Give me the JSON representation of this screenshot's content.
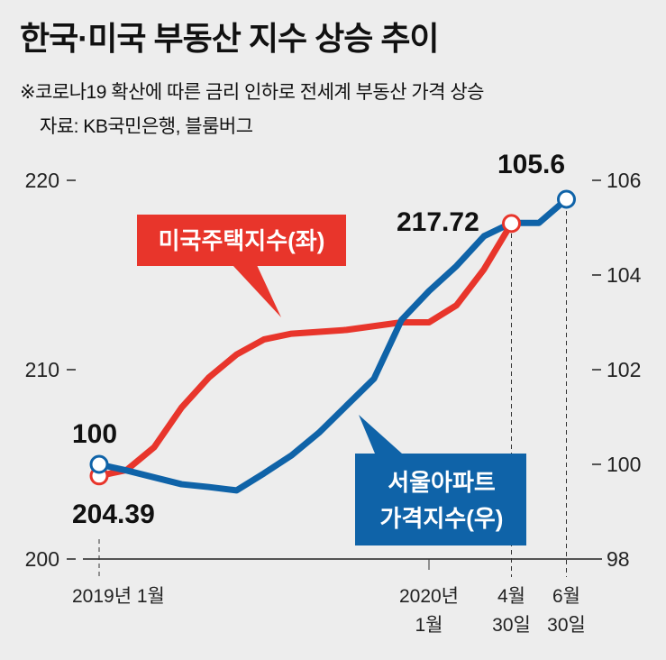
{
  "title": "한국·미국 부동산 지수 상승 추이",
  "subtitle": "※코로나19 확산에 따른 금리 인하로 전세계 부동산 가격 상승",
  "source": "자료: KB국민은행, 블룸버그",
  "chart_data": {
    "type": "line",
    "title": "한국·미국 부동산 지수 상승 추이",
    "x_unit": "months since 2019-01",
    "left_axis": {
      "ylim": [
        200,
        220
      ],
      "ticks": [
        "200",
        "210",
        "220"
      ]
    },
    "right_axis": {
      "ylim": [
        98,
        106
      ],
      "ticks": [
        "98",
        "100",
        "102",
        "104",
        "106"
      ]
    },
    "x_ticks": [
      {
        "x": 0,
        "lines": [
          "2019년 1월"
        ]
      },
      {
        "x": 12,
        "lines": [
          "2020년",
          "1월"
        ]
      },
      {
        "x": 15,
        "lines": [
          "4월",
          "30일"
        ]
      },
      {
        "x": 17,
        "lines": [
          "6월",
          "30일"
        ]
      }
    ],
    "series": [
      {
        "name": "미국주택지수(좌)",
        "axis": "left",
        "color": "#e8352b",
        "x": [
          0,
          1,
          2,
          3,
          4,
          5,
          6,
          7,
          9,
          11,
          12,
          13,
          14,
          15
        ],
        "values": [
          204.39,
          204.7,
          205.9,
          208.0,
          209.6,
          210.8,
          211.6,
          211.9,
          212.1,
          212.5,
          212.5,
          213.4,
          215.3,
          217.72
        ],
        "start_label": "204.39",
        "end_label": "217.72"
      },
      {
        "name": "서울아파트 가격지수(우)",
        "axis": "right",
        "color": "#0f63a8",
        "x": [
          0,
          1,
          3,
          4,
          5,
          6,
          7,
          8,
          9,
          10,
          11,
          12,
          13,
          14,
          15,
          16,
          17
        ],
        "values": [
          100,
          99.87,
          99.58,
          99.52,
          99.45,
          99.81,
          100.19,
          100.67,
          101.24,
          101.81,
          103.05,
          103.66,
          104.19,
          104.82,
          105.1,
          105.1,
          105.6
        ],
        "start_label": "100",
        "end_label": "105.6"
      }
    ],
    "legend": {
      "red_lines": [
        "미국주택지수(좌)"
      ],
      "blue_lines": [
        "서울아파트",
        "가격지수(우)"
      ]
    }
  }
}
